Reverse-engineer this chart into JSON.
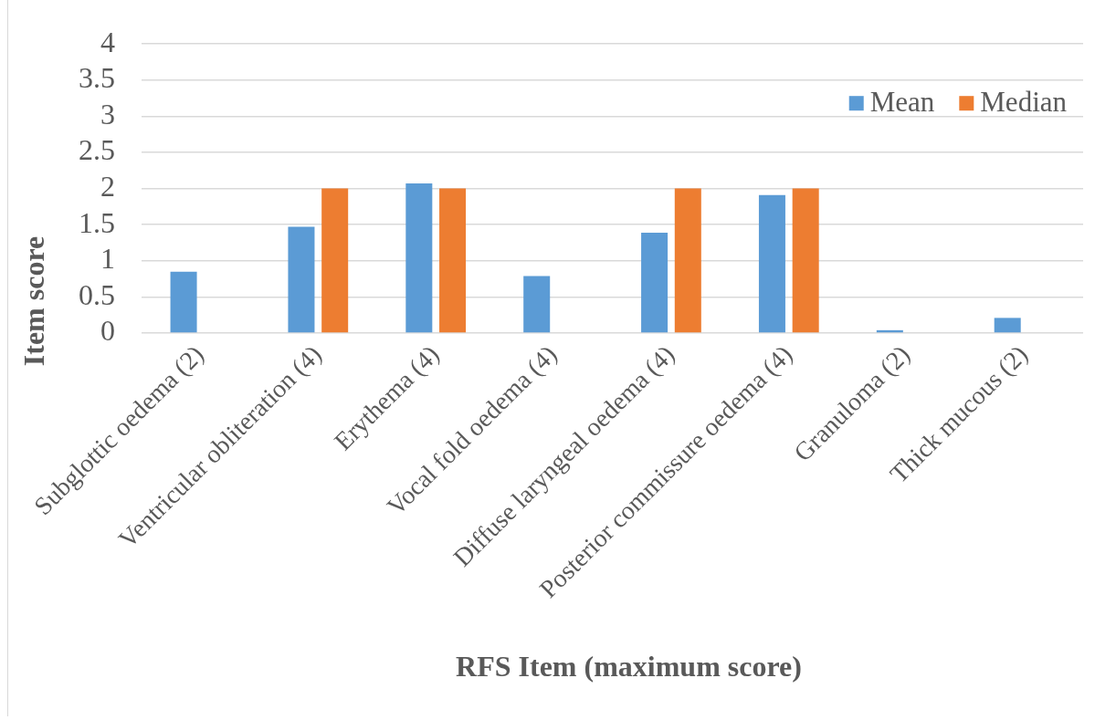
{
  "chart_data": {
    "type": "bar",
    "xlabel": "RFS Item (maximum score)",
    "ylabel": "Item score",
    "categories": [
      "Subglottic oedema (2)",
      "Ventricular obliteration (4)",
      "Erythema (4)",
      "Vocal fold oedema (4)",
      "Diffuse laryngeal oedema (4)",
      "Posterior commissure oedema (4)",
      "Granuloma (2)",
      "Thick mucous (2)"
    ],
    "series": [
      {
        "name": "Mean",
        "color": "#5b9bd5",
        "values": [
          0.85,
          1.47,
          2.07,
          0.79,
          1.39,
          1.91,
          0.04,
          0.21
        ]
      },
      {
        "name": "Median",
        "color": "#ed7d31",
        "values": [
          0,
          2,
          2,
          0,
          2,
          2,
          0,
          0
        ]
      }
    ],
    "ylim": [
      0,
      4
    ],
    "yticks": [
      0,
      0.5,
      1,
      1.5,
      2,
      2.5,
      3,
      3.5,
      4
    ],
    "grid": "y",
    "legend": "top right"
  }
}
